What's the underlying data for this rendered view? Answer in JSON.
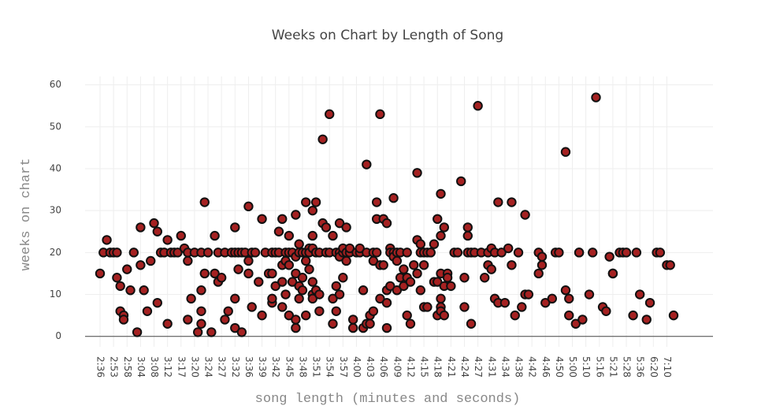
{
  "chart_data": {
    "type": "scatter",
    "title": "Weeks on Chart by Length of Song",
    "x_label": "song length (minutes and seconds)",
    "y_label": "weeks on chart",
    "color": "#a52121",
    "edge_color": "#111111",
    "grid": true,
    "ylim": [
      -2.5,
      62
    ],
    "yticks": [
      0,
      10,
      20,
      30,
      40,
      50,
      60
    ],
    "categories": [
      "2:36",
      null,
      null,
      null,
      "2:53",
      null,
      null,
      null,
      "2:58",
      null,
      null,
      null,
      "3:04",
      null,
      null,
      null,
      "3:08",
      null,
      null,
      null,
      "3:12",
      null,
      null,
      null,
      "3:17",
      null,
      null,
      null,
      "3:20",
      null,
      null,
      null,
      "3:24",
      null,
      null,
      null,
      "3:27",
      null,
      null,
      null,
      "3:32",
      null,
      null,
      null,
      "3:36",
      null,
      null,
      null,
      "3:39",
      null,
      null,
      null,
      "3:42",
      null,
      null,
      null,
      "3:45",
      null,
      null,
      null,
      "3:48",
      null,
      null,
      null,
      "3:51",
      null,
      null,
      null,
      "3:54",
      null,
      null,
      null,
      "3:57",
      null,
      null,
      null,
      "4:00",
      null,
      null,
      null,
      "4:03",
      null,
      null,
      null,
      "4:06",
      null,
      null,
      null,
      "4:09",
      null,
      null,
      null,
      "4:12",
      null,
      null,
      null,
      "4:15",
      null,
      null,
      null,
      "4:18",
      null,
      null,
      null,
      "4:21",
      null,
      null,
      null,
      "4:24",
      null,
      null,
      null,
      "4:27",
      null,
      null,
      null,
      "4:31",
      null,
      null,
      null,
      "4:34",
      null,
      null,
      null,
      "4:38",
      null,
      null,
      null,
      "4:42",
      null,
      null,
      null,
      "4:46",
      null,
      null,
      null,
      "4:50",
      null,
      null,
      null,
      "5:00",
      null,
      null,
      null,
      "5:10",
      null,
      null,
      null,
      "5:16",
      null,
      null,
      null,
      "5:21",
      null,
      null,
      null,
      "5:28",
      null,
      null,
      null,
      "5:36",
      null,
      null,
      null,
      "6:20",
      null,
      null,
      null,
      "7:10",
      null,
      null
    ],
    "values": [
      [
        15
      ],
      [
        20
      ],
      [
        23
      ],
      [
        20
      ],
      [
        20
      ],
      [
        20,
        14
      ],
      [
        12,
        6
      ],
      [
        5,
        4
      ],
      [
        16
      ],
      [
        11
      ],
      [
        20
      ],
      [
        1
      ],
      [
        26,
        17
      ],
      [
        11
      ],
      [
        6
      ],
      [
        18
      ],
      [
        27
      ],
      [
        25,
        8
      ],
      [
        20
      ],
      [
        20
      ],
      [
        23,
        3
      ],
      [
        20
      ],
      [
        20
      ],
      [
        20
      ],
      [
        24
      ],
      [
        21
      ],
      [
        20,
        18,
        4
      ],
      [
        9
      ],
      [
        20
      ],
      [
        1
      ],
      [
        20,
        11,
        6,
        3
      ],
      [
        32,
        15
      ],
      [
        20
      ],
      [
        1
      ],
      [
        15,
        24
      ],
      [
        20,
        13
      ],
      [
        14
      ],
      [
        20,
        4
      ],
      [
        6
      ],
      [
        20
      ],
      [
        20,
        26,
        9,
        2
      ],
      [
        20,
        16
      ],
      [
        20,
        1
      ],
      [
        20
      ],
      [
        31,
        18,
        15
      ],
      [
        20,
        7
      ],
      [
        20
      ],
      [
        13
      ],
      [
        28,
        5
      ],
      [
        20
      ],
      [
        15
      ],
      [
        20,
        15,
        8,
        9
      ],
      [
        20,
        12
      ],
      [
        25,
        20
      ],
      [
        28,
        17,
        13,
        7
      ],
      [
        20,
        18,
        10
      ],
      [
        20,
        24,
        17,
        5
      ],
      [
        20,
        13
      ],
      [
        29,
        19,
        4,
        2,
        15
      ],
      [
        20,
        22,
        12,
        9
      ],
      [
        20,
        14,
        11
      ],
      [
        20,
        32,
        18,
        5
      ],
      [
        21,
        20,
        16
      ],
      [
        30,
        24,
        21,
        13,
        10,
        9
      ],
      [
        32,
        20,
        11
      ],
      [
        20,
        10,
        6
      ],
      [
        47,
        27
      ],
      [
        26,
        20
      ],
      [
        53,
        20
      ],
      [
        24,
        9,
        3
      ],
      [
        20,
        12,
        6
      ],
      [
        27,
        20,
        19,
        10
      ],
      [
        20,
        21,
        14
      ],
      [
        26,
        20,
        18
      ],
      [
        20,
        21
      ],
      [
        4,
        2
      ],
      [
        20
      ],
      [
        20,
        21
      ],
      [
        11,
        2
      ],
      [
        41,
        20,
        3
      ],
      [
        5,
        3
      ],
      [
        20,
        6,
        18
      ],
      [
        28,
        32,
        20
      ],
      [
        53,
        17,
        9
      ],
      [
        17,
        28
      ],
      [
        27,
        11,
        8,
        2
      ],
      [
        21,
        12,
        20
      ],
      [
        33,
        20,
        19
      ],
      [
        20,
        18,
        11
      ],
      [
        20,
        14
      ],
      [
        16,
        12
      ],
      [
        5,
        14,
        20
      ],
      [
        13,
        3
      ],
      [
        17
      ],
      [
        39,
        23,
        15
      ],
      [
        20,
        22,
        11
      ],
      [
        20,
        17,
        7
      ],
      [
        20,
        7
      ],
      [
        20,
        20
      ],
      [
        22,
        13
      ],
      [
        28,
        13,
        5
      ],
      [
        34,
        24,
        15,
        9,
        7,
        6
      ],
      [
        26,
        12,
        5
      ],
      [
        15,
        14
      ],
      [
        12
      ],
      [
        20
      ],
      [
        20
      ],
      [
        37
      ],
      [
        14,
        7
      ],
      [
        26,
        24,
        20
      ],
      [
        20,
        3
      ],
      [
        20
      ],
      [
        55
      ],
      [
        20
      ],
      [
        14
      ],
      [
        20,
        17
      ],
      [
        21,
        16
      ],
      [
        20,
        9
      ],
      [
        32,
        8
      ],
      [
        20
      ],
      [
        8
      ],
      [
        21
      ],
      [
        32,
        17
      ],
      [
        5
      ],
      [
        20
      ],
      [
        7
      ],
      [
        29,
        10
      ],
      [
        10
      ],
      [],
      [],
      [
        20,
        15
      ],
      [
        19,
        17
      ],
      [
        8
      ],
      [],
      [
        9
      ],
      [
        20
      ],
      [
        20
      ],
      [],
      [
        44,
        11
      ],
      [
        9,
        5
      ],
      [],
      [
        3
      ],
      [
        20,
        20
      ],
      [
        4
      ],
      [],
      [
        10
      ],
      [
        20
      ],
      [
        57
      ],
      [],
      [
        7
      ],
      [
        6
      ],
      [
        19
      ],
      [
        15,
        15
      ],
      [],
      [
        20
      ],
      [
        20
      ],
      [
        20
      ],
      [],
      [
        5
      ],
      [
        20
      ],
      [
        10
      ],
      [],
      [
        4
      ],
      [
        8
      ],
      [],
      [
        20
      ],
      [
        20
      ],
      [],
      [
        17
      ],
      [
        17
      ],
      [
        5
      ]
    ]
  }
}
